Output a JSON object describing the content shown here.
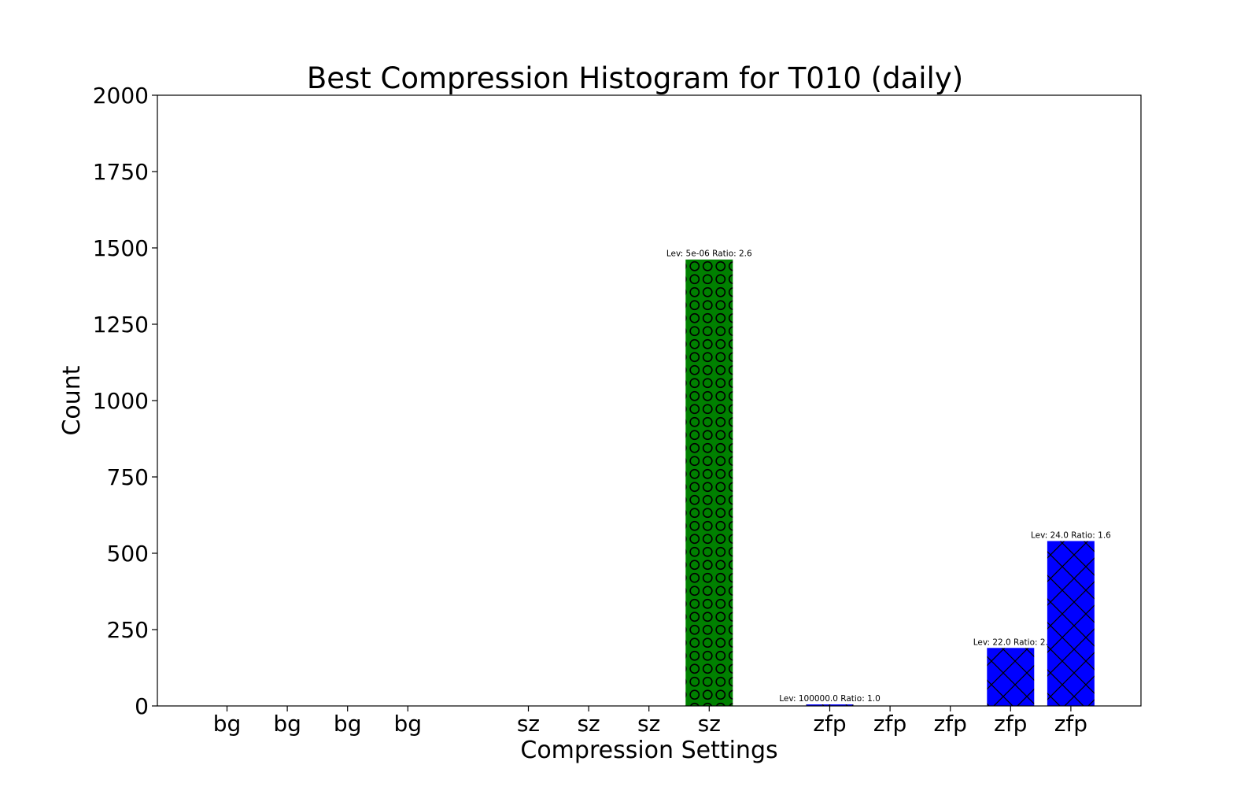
{
  "chart_data": {
    "type": "bar",
    "title": "Best Compression Histogram for T010 (daily)",
    "xlabel": "Compression Settings",
    "ylabel": "Count",
    "ylim": [
      0,
      2000
    ],
    "yticks": [
      "0",
      "250",
      "500",
      "750",
      "1000",
      "1250",
      "1500",
      "1750",
      "2000"
    ],
    "categories": [
      "bg",
      "bg",
      "bg",
      "bg",
      "sz",
      "sz",
      "sz",
      "sz",
      "zfp",
      "zfp",
      "zfp",
      "zfp",
      "zfp"
    ],
    "groups": [
      {
        "name": "bg",
        "color": "#ff0000",
        "hatch": "none"
      },
      {
        "name": "sz",
        "color": "#008000",
        "hatch": "circles"
      },
      {
        "name": "zfp",
        "color": "#0000ff",
        "hatch": "crosshatch"
      }
    ],
    "values": [
      0,
      0,
      0,
      0,
      0,
      0,
      0,
      1462,
      5,
      0,
      0,
      190,
      540
    ],
    "bar_labels": [
      "",
      "",
      "",
      "",
      "",
      "",
      "",
      "Lev: 5e-06 Ratio: 2.6",
      "Lev: 100000.0 Ratio: 1.0",
      "",
      "",
      "Lev: 22.0 Ratio: 2.",
      "Lev: 24.0 Ratio: 1.6"
    ],
    "grid": false,
    "legend": "none"
  }
}
